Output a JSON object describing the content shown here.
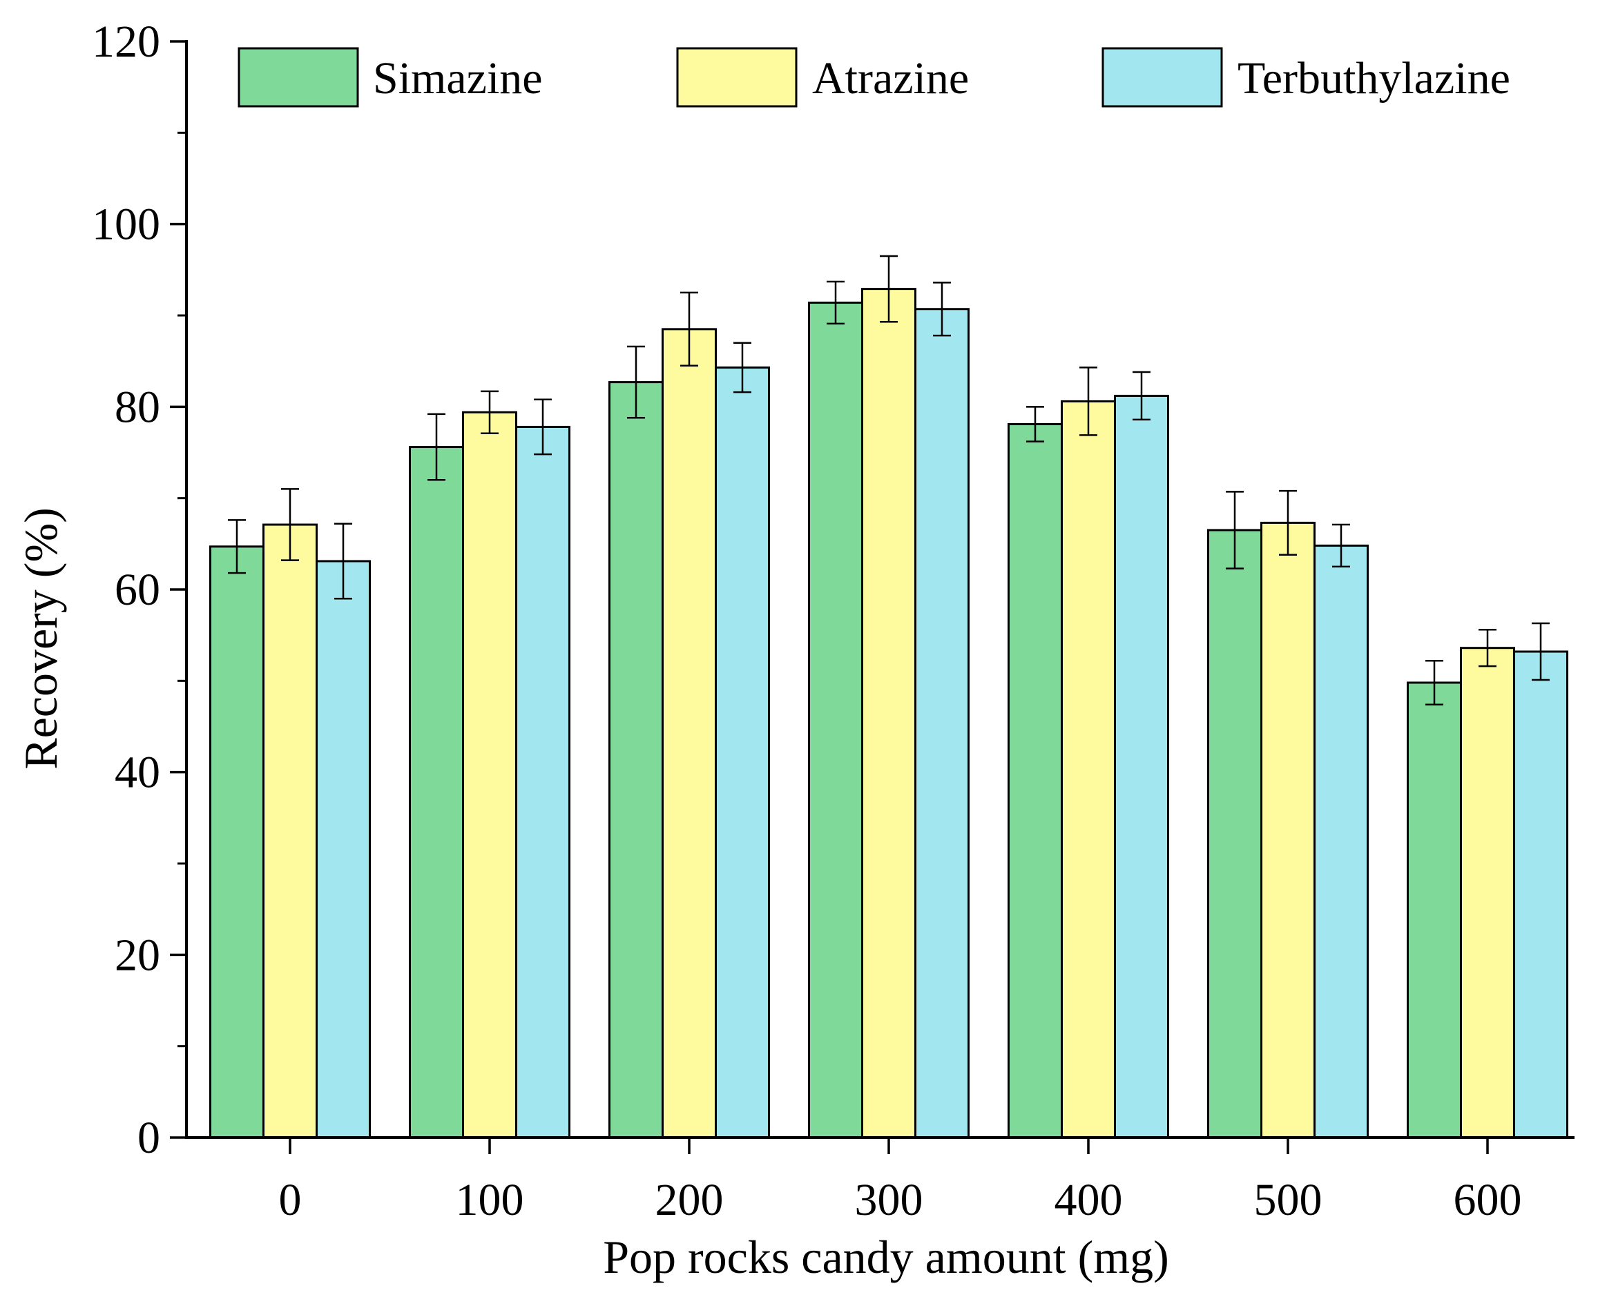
{
  "chart_data": {
    "type": "bar",
    "title": "",
    "xlabel": "Pop rocks candy amount (mg)",
    "ylabel": "Recovery (%)",
    "categories": [
      "0",
      "100",
      "200",
      "300",
      "400",
      "500",
      "600"
    ],
    "ylim": [
      0,
      120
    ],
    "yticks": [
      "0",
      "20",
      "40",
      "60",
      "80",
      "100",
      "120"
    ],
    "grid": false,
    "legend_position": "top",
    "series": [
      {
        "name": "Simazine",
        "color": "#7fd999",
        "values": [
          64.7,
          75.6,
          82.7,
          91.4,
          78.1,
          66.5,
          49.8
        ],
        "errors": [
          2.9,
          3.6,
          3.9,
          2.3,
          1.9,
          4.2,
          2.4
        ]
      },
      {
        "name": "Atrazine",
        "color": "#fdfb9d",
        "values": [
          67.1,
          79.4,
          88.5,
          92.9,
          80.6,
          67.3,
          53.6
        ],
        "errors": [
          3.9,
          2.3,
          4.0,
          3.6,
          3.7,
          3.5,
          2.0
        ]
      },
      {
        "name": "Terbuthylazine",
        "color": "#a2e7ef",
        "values": [
          63.1,
          77.8,
          84.3,
          90.7,
          81.2,
          64.8,
          53.2
        ],
        "errors": [
          4.1,
          3.0,
          2.7,
          2.9,
          2.6,
          2.3,
          3.1
        ]
      }
    ]
  }
}
